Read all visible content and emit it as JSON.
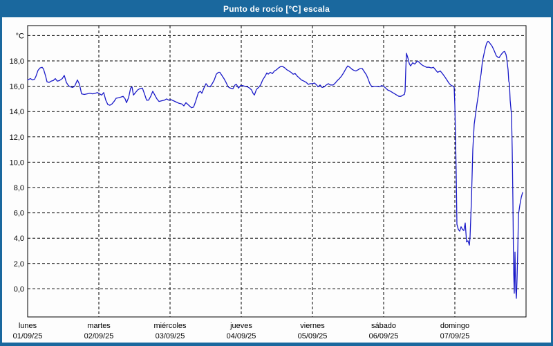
{
  "window": {
    "title": "Punto de rocío [°C] escala"
  },
  "chart_data": {
    "type": "line",
    "title": "Punto de rocío [°C] escala",
    "ylabel_unit": "°C",
    "series_name": "Punto de rocío",
    "line_color": "#1a1ac8",
    "grid": "dashed-black",
    "background": "#fdfdfd",
    "frame_color": "#1a689e",
    "ylim": [
      -2.2,
      20.8
    ],
    "x_span_days": 7,
    "y_gridlines": [
      {
        "value": 20,
        "label": "°C"
      },
      {
        "value": 18,
        "label": "18,0"
      },
      {
        "value": 16,
        "label": "16,0"
      },
      {
        "value": 14,
        "label": "14,0"
      },
      {
        "value": 12,
        "label": "12,0"
      },
      {
        "value": 10,
        "label": "10,0"
      },
      {
        "value": 8,
        "label": "8,0"
      },
      {
        "value": 6,
        "label": "6,0"
      },
      {
        "value": 4,
        "label": "4,0"
      },
      {
        "value": 2,
        "label": "2,0"
      },
      {
        "value": 0,
        "label": "0,0"
      }
    ],
    "x_ticks": [
      {
        "day": "lunes",
        "date": "01/09/25"
      },
      {
        "day": "martes",
        "date": "02/09/25"
      },
      {
        "day": "miércoles",
        "date": "03/09/25"
      },
      {
        "day": "jueves",
        "date": "04/09/25"
      },
      {
        "day": "viernes",
        "date": "05/09/25"
      },
      {
        "day": "sábado",
        "date": "06/09/25"
      },
      {
        "day": "domingo",
        "date": "07/09/25"
      }
    ],
    "points": [
      [
        0.0,
        16.5
      ],
      [
        0.039,
        16.6
      ],
      [
        0.068,
        16.5
      ],
      [
        0.097,
        16.55
      ],
      [
        0.117,
        16.8
      ],
      [
        0.146,
        17.25
      ],
      [
        0.175,
        17.45
      ],
      [
        0.204,
        17.5
      ],
      [
        0.223,
        17.35
      ],
      [
        0.252,
        16.8
      ],
      [
        0.272,
        16.35
      ],
      [
        0.301,
        16.3
      ],
      [
        0.33,
        16.4
      ],
      [
        0.359,
        16.45
      ],
      [
        0.388,
        16.6
      ],
      [
        0.417,
        16.4
      ],
      [
        0.447,
        16.45
      ],
      [
        0.485,
        16.6
      ],
      [
        0.515,
        16.85
      ],
      [
        0.544,
        16.3
      ],
      [
        0.573,
        16.05
      ],
      [
        0.602,
        15.95
      ],
      [
        0.631,
        15.9
      ],
      [
        0.66,
        16.0
      ],
      [
        0.699,
        16.5
      ],
      [
        0.728,
        16.15
      ],
      [
        0.757,
        15.4
      ],
      [
        0.796,
        15.35
      ],
      [
        0.835,
        15.4
      ],
      [
        0.874,
        15.45
      ],
      [
        0.913,
        15.4
      ],
      [
        0.951,
        15.45
      ],
      [
        0.981,
        15.5
      ],
      [
        1.01,
        15.4
      ],
      [
        1.039,
        15.3
      ],
      [
        1.068,
        15.5
      ],
      [
        1.097,
        14.9
      ],
      [
        1.126,
        14.55
      ],
      [
        1.155,
        14.5
      ],
      [
        1.184,
        14.6
      ],
      [
        1.214,
        14.8
      ],
      [
        1.243,
        15.05
      ],
      [
        1.282,
        15.1
      ],
      [
        1.311,
        15.15
      ],
      [
        1.34,
        15.2
      ],
      [
        1.369,
        15.0
      ],
      [
        1.388,
        14.7
      ],
      [
        1.417,
        15.1
      ],
      [
        1.447,
        15.85
      ],
      [
        1.466,
        15.95
      ],
      [
        1.485,
        15.3
      ],
      [
        1.515,
        15.5
      ],
      [
        1.544,
        15.7
      ],
      [
        1.573,
        15.8
      ],
      [
        1.612,
        15.85
      ],
      [
        1.641,
        15.4
      ],
      [
        1.67,
        14.9
      ],
      [
        1.699,
        14.9
      ],
      [
        1.728,
        15.2
      ],
      [
        1.757,
        15.6
      ],
      [
        1.786,
        15.3
      ],
      [
        1.816,
        15.0
      ],
      [
        1.845,
        14.8
      ],
      [
        1.883,
        14.85
      ],
      [
        1.922,
        14.9
      ],
      [
        1.951,
        15.0
      ],
      [
        1.981,
        14.9
      ],
      [
        2.01,
        14.95
      ],
      [
        2.049,
        14.85
      ],
      [
        2.087,
        14.75
      ],
      [
        2.126,
        14.65
      ],
      [
        2.165,
        14.6
      ],
      [
        2.194,
        14.45
      ],
      [
        2.223,
        14.7
      ],
      [
        2.252,
        14.55
      ],
      [
        2.282,
        14.4
      ],
      [
        2.301,
        14.3
      ],
      [
        2.33,
        14.35
      ],
      [
        2.359,
        14.8
      ],
      [
        2.398,
        15.5
      ],
      [
        2.427,
        15.6
      ],
      [
        2.447,
        15.45
      ],
      [
        2.476,
        15.85
      ],
      [
        2.505,
        16.2
      ],
      [
        2.534,
        16.0
      ],
      [
        2.563,
        15.95
      ],
      [
        2.592,
        16.2
      ],
      [
        2.621,
        16.5
      ],
      [
        2.65,
        16.95
      ],
      [
        2.68,
        17.1
      ],
      [
        2.699,
        17.1
      ],
      [
        2.728,
        16.85
      ],
      [
        2.757,
        16.6
      ],
      [
        2.786,
        16.3
      ],
      [
        2.816,
        15.95
      ],
      [
        2.845,
        15.85
      ],
      [
        2.883,
        15.8
      ],
      [
        2.913,
        16.1
      ],
      [
        2.932,
        16.15
      ],
      [
        2.961,
        15.85
      ],
      [
        2.99,
        16.05
      ],
      [
        3.019,
        16.05
      ],
      [
        3.049,
        16.0
      ],
      [
        3.087,
        15.95
      ],
      [
        3.117,
        15.85
      ],
      [
        3.146,
        15.7
      ],
      [
        3.165,
        15.45
      ],
      [
        3.184,
        15.3
      ],
      [
        3.214,
        15.75
      ],
      [
        3.243,
        15.9
      ],
      [
        3.272,
        16.1
      ],
      [
        3.301,
        16.5
      ],
      [
        3.33,
        16.75
      ],
      [
        3.359,
        17.05
      ],
      [
        3.379,
        16.95
      ],
      [
        3.408,
        17.1
      ],
      [
        3.437,
        17.0
      ],
      [
        3.466,
        17.2
      ],
      [
        3.495,
        17.3
      ],
      [
        3.524,
        17.45
      ],
      [
        3.553,
        17.55
      ],
      [
        3.583,
        17.55
      ],
      [
        3.612,
        17.45
      ],
      [
        3.641,
        17.3
      ],
      [
        3.67,
        17.2
      ],
      [
        3.699,
        17.1
      ],
      [
        3.728,
        16.95
      ],
      [
        3.757,
        17.0
      ],
      [
        3.786,
        16.8
      ],
      [
        3.816,
        16.65
      ],
      [
        3.845,
        16.5
      ],
      [
        3.883,
        16.4
      ],
      [
        3.913,
        16.3
      ],
      [
        3.942,
        16.15
      ],
      [
        3.971,
        16.2
      ],
      [
        4.0,
        16.2
      ],
      [
        4.029,
        16.25
      ],
      [
        4.058,
        16.1
      ],
      [
        4.078,
        15.95
      ],
      [
        4.107,
        16.1
      ],
      [
        4.136,
        15.9
      ],
      [
        4.165,
        15.95
      ],
      [
        4.194,
        16.1
      ],
      [
        4.223,
        16.2
      ],
      [
        4.252,
        16.1
      ],
      [
        4.291,
        16.1
      ],
      [
        4.32,
        16.25
      ],
      [
        4.35,
        16.45
      ],
      [
        4.379,
        16.6
      ],
      [
        4.408,
        16.8
      ],
      [
        4.437,
        17.05
      ],
      [
        4.466,
        17.35
      ],
      [
        4.495,
        17.6
      ],
      [
        4.524,
        17.5
      ],
      [
        4.553,
        17.35
      ],
      [
        4.583,
        17.25
      ],
      [
        4.612,
        17.2
      ],
      [
        4.641,
        17.3
      ],
      [
        4.67,
        17.4
      ],
      [
        4.699,
        17.4
      ],
      [
        4.728,
        17.15
      ],
      [
        4.757,
        16.9
      ],
      [
        4.777,
        16.65
      ],
      [
        4.806,
        16.2
      ],
      [
        4.835,
        15.95
      ],
      [
        4.864,
        16.0
      ],
      [
        4.903,
        16.0
      ],
      [
        4.942,
        15.95
      ],
      [
        4.971,
        16.05
      ],
      [
        5.0,
        16.0
      ],
      [
        5.029,
        15.85
      ],
      [
        5.058,
        15.7
      ],
      [
        5.097,
        15.6
      ],
      [
        5.126,
        15.5
      ],
      [
        5.155,
        15.4
      ],
      [
        5.184,
        15.3
      ],
      [
        5.214,
        15.2
      ],
      [
        5.243,
        15.2
      ],
      [
        5.272,
        15.3
      ],
      [
        5.291,
        15.35
      ],
      [
        5.301,
        15.6
      ],
      [
        5.311,
        17.3
      ],
      [
        5.32,
        18.6
      ],
      [
        5.34,
        18.25
      ],
      [
        5.359,
        17.8
      ],
      [
        5.379,
        17.6
      ],
      [
        5.408,
        17.85
      ],
      [
        5.437,
        17.75
      ],
      [
        5.476,
        18.0
      ],
      [
        5.505,
        17.85
      ],
      [
        5.534,
        17.7
      ],
      [
        5.563,
        17.6
      ],
      [
        5.602,
        17.5
      ],
      [
        5.641,
        17.5
      ],
      [
        5.67,
        17.45
      ],
      [
        5.699,
        17.5
      ],
      [
        5.728,
        17.3
      ],
      [
        5.757,
        17.1
      ],
      [
        5.796,
        17.2
      ],
      [
        5.825,
        17.0
      ],
      [
        5.864,
        16.7
      ],
      [
        5.893,
        16.45
      ],
      [
        5.922,
        16.2
      ],
      [
        5.951,
        16.05
      ],
      [
        5.981,
        16.0
      ],
      [
        5.99,
        15.9
      ],
      [
        6.0,
        14.5
      ],
      [
        6.01,
        12.0
      ],
      [
        6.019,
        9.0
      ],
      [
        6.029,
        5.1
      ],
      [
        6.049,
        4.7
      ],
      [
        6.068,
        4.55
      ],
      [
        6.087,
        4.9
      ],
      [
        6.107,
        4.7
      ],
      [
        6.126,
        4.6
      ],
      [
        6.146,
        5.2
      ],
      [
        6.165,
        3.7
      ],
      [
        6.184,
        3.8
      ],
      [
        6.204,
        3.45
      ],
      [
        6.214,
        4.1
      ],
      [
        6.233,
        7.0
      ],
      [
        6.252,
        11.0
      ],
      [
        6.272,
        13.0
      ],
      [
        6.291,
        13.8
      ],
      [
        6.311,
        14.6
      ],
      [
        6.33,
        15.3
      ],
      [
        6.35,
        16.3
      ],
      [
        6.369,
        17.0
      ],
      [
        6.388,
        18.0
      ],
      [
        6.408,
        18.5
      ],
      [
        6.427,
        19.0
      ],
      [
        6.447,
        19.4
      ],
      [
        6.466,
        19.55
      ],
      [
        6.485,
        19.45
      ],
      [
        6.505,
        19.3
      ],
      [
        6.524,
        19.15
      ],
      [
        6.553,
        18.8
      ],
      [
        6.583,
        18.4
      ],
      [
        6.602,
        18.3
      ],
      [
        6.621,
        18.25
      ],
      [
        6.65,
        18.5
      ],
      [
        6.68,
        18.7
      ],
      [
        6.699,
        18.75
      ],
      [
        6.718,
        18.5
      ],
      [
        6.728,
        18.2
      ],
      [
        6.748,
        17.3
      ],
      [
        6.757,
        16.4
      ],
      [
        6.767,
        16.2
      ],
      [
        6.777,
        14.9
      ],
      [
        6.796,
        13.7
      ],
      [
        6.806,
        11.0
      ],
      [
        6.816,
        7.0
      ],
      [
        6.825,
        1.5
      ],
      [
        6.835,
        -0.35
      ],
      [
        6.845,
        2.9
      ],
      [
        6.855,
        0.0
      ],
      [
        6.864,
        -0.75
      ],
      [
        6.874,
        0.8
      ],
      [
        6.884,
        3.2
      ],
      [
        6.893,
        5.85
      ],
      [
        6.913,
        6.6
      ],
      [
        6.932,
        7.2
      ],
      [
        6.951,
        7.6
      ]
    ]
  }
}
